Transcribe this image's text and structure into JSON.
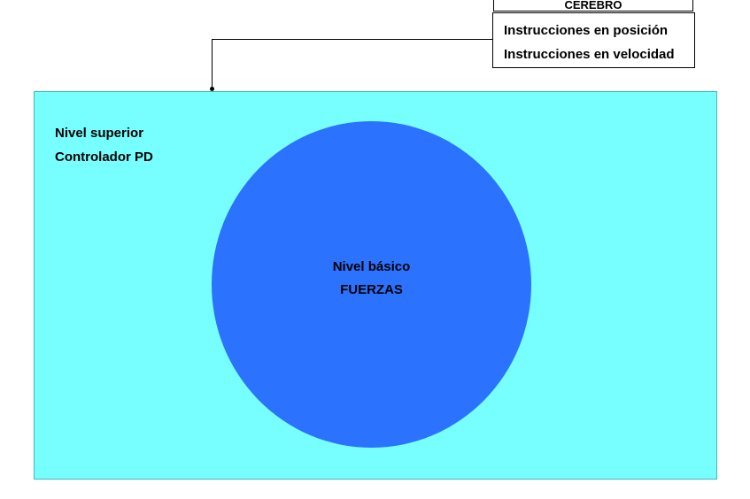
{
  "brain": {
    "title": "CEREBRO",
    "instructions": [
      "Instrucciones en posición",
      "Instrucciones en velocidad"
    ]
  },
  "upper_level": {
    "lines": [
      "Nivel superior",
      "Controlador PD"
    ]
  },
  "basic_level": {
    "lines": [
      "Nivel básico",
      "FUERZAS"
    ]
  },
  "colors": {
    "upper_level_fill": "#77ffff",
    "basic_level_fill": "#2b72ff",
    "connector": "#000000"
  }
}
